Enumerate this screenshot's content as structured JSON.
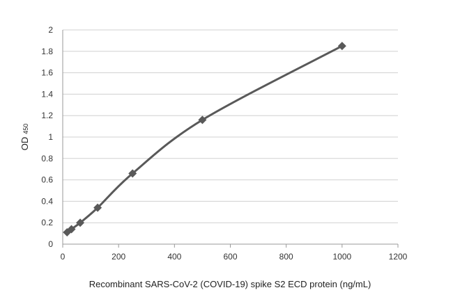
{
  "chart_data": {
    "type": "scatter",
    "title": "",
    "xlabel": "Recombinant SARS-CoV-2 (COVID-19) spike S2 ECD protein (ng/mL)",
    "ylabel": "OD",
    "ylabel_subscript": "450",
    "xlim": [
      0,
      1200
    ],
    "ylim": [
      0,
      2
    ],
    "xticks": [
      0,
      200,
      400,
      600,
      800,
      1000,
      1200
    ],
    "yticks": [
      0,
      0.2,
      0.4,
      0.6,
      0.8,
      1,
      1.2,
      1.4,
      1.6,
      1.8,
      2
    ],
    "grid": "horizontal",
    "marker": "diamond",
    "color": "#595959",
    "series": [
      {
        "x": [
          15.6,
          31.25,
          62.5,
          125,
          250,
          500,
          1000
        ],
        "y": [
          0.11,
          0.14,
          0.2,
          0.34,
          0.66,
          1.16,
          1.85
        ]
      }
    ]
  }
}
